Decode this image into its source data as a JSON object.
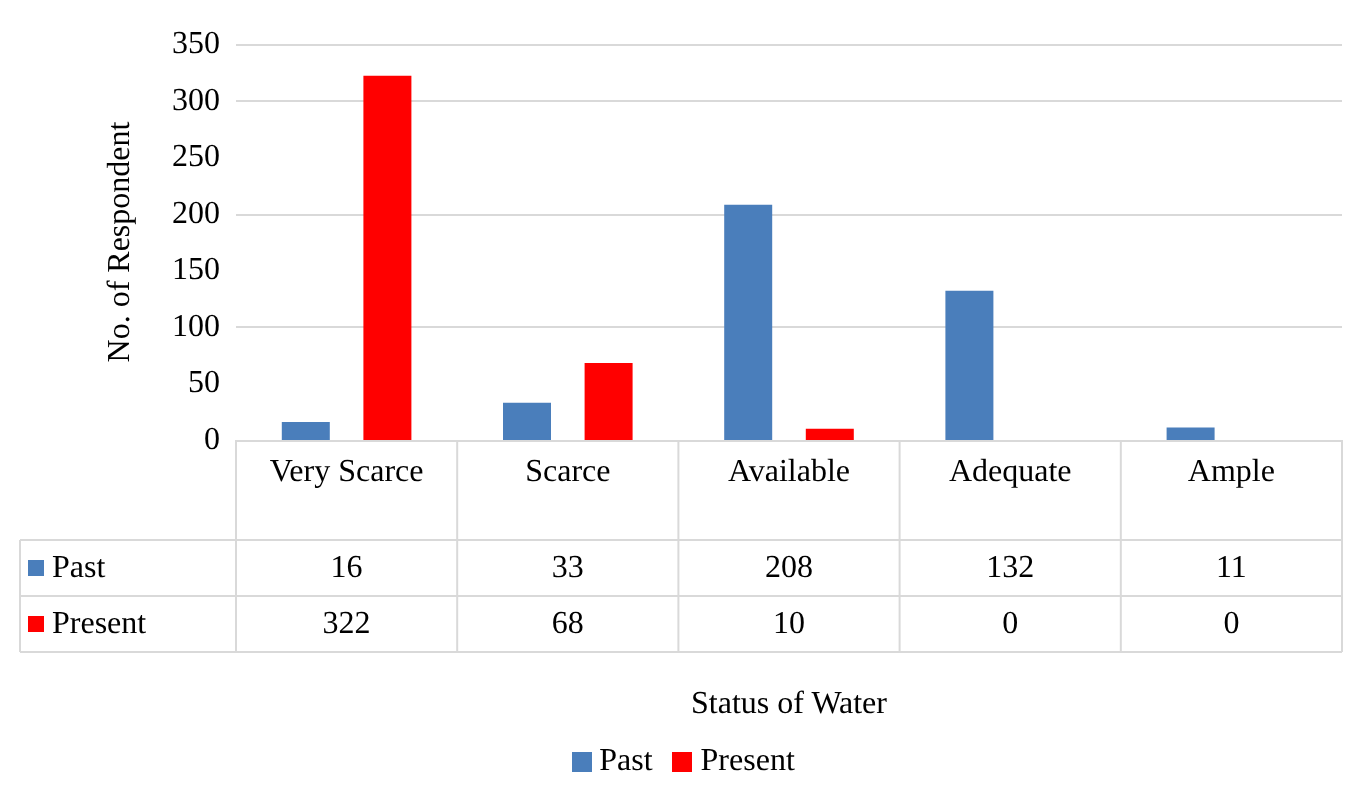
{
  "chart_data": {
    "type": "bar",
    "annotations": [
      "Status of Water"
    ],
    "ylabel": "No. of Respondent",
    "categories": [
      "Very Scarce",
      "Scarce",
      "Available",
      "Adequate",
      "Ample"
    ],
    "series": [
      {
        "name": "Past",
        "color": "#4a7ebb",
        "values": [
          16,
          33,
          208,
          132,
          11
        ]
      },
      {
        "name": "Present",
        "color": "#ff0000",
        "values": [
          322,
          68,
          10,
          0,
          0
        ]
      }
    ],
    "ylim": [
      0,
      350
    ],
    "yticks": [
      0,
      50,
      100,
      150,
      200,
      250,
      300,
      350
    ],
    "grid": "y",
    "legend": "bottom",
    "data_labels": true
  }
}
